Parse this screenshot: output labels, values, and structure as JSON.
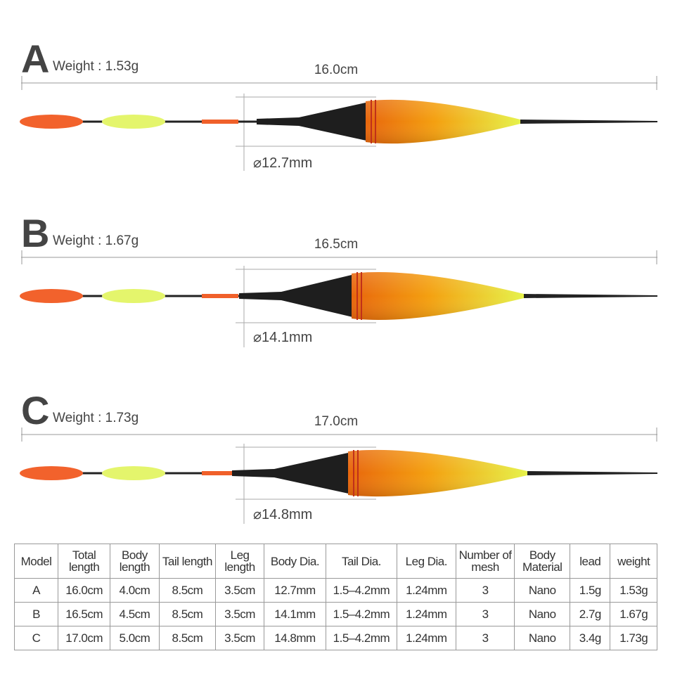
{
  "floats": [
    {
      "label": "A",
      "weight": "Weight : 1.53g",
      "length": "16.0cm",
      "diameter": "⌀12.7mm"
    },
    {
      "label": "B",
      "weight": "Weight : 1.67g",
      "length": "16.5cm",
      "diameter": "⌀14.1mm"
    },
    {
      "label": "C",
      "weight": "Weight : 1.73g",
      "length": "17.0cm",
      "diameter": "⌀14.8mm"
    }
  ],
  "table": {
    "header": [
      "Model",
      "Total length",
      "Body length",
      "Tail length",
      "Leg length",
      "Body Dia.",
      "Tail Dia.",
      "Leg Dia.",
      "Number of mesh",
      "Body Material",
      "lead",
      "weight"
    ],
    "rows": [
      [
        "A",
        "16.0cm",
        "4.0cm",
        "8.5cm",
        "3.5cm",
        "12.7mm",
        "1.5–4.2mm",
        "1.24mm",
        "3",
        "Nano",
        "1.5g",
        "1.53g"
      ],
      [
        "B",
        "16.5cm",
        "4.5cm",
        "8.5cm",
        "3.5cm",
        "14.1mm",
        "1.5–4.2mm",
        "1.24mm",
        "3",
        "Nano",
        "2.7g",
        "1.67g"
      ],
      [
        "C",
        "17.0cm",
        "5.0cm",
        "8.5cm",
        "3.5cm",
        "14.8mm",
        "1.5–4.2mm",
        "1.24mm",
        "3",
        "Nano",
        "3.4g",
        "1.73g"
      ]
    ]
  }
}
